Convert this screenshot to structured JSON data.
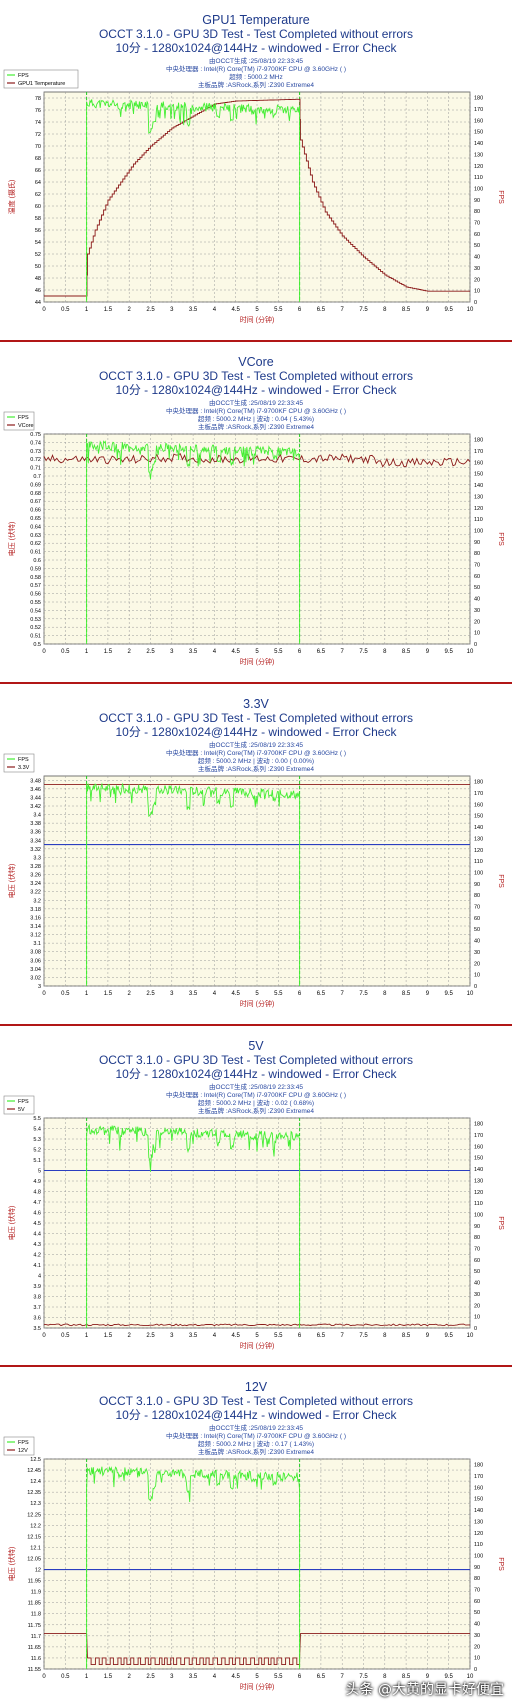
{
  "watermark": "头条 @大黄的显卡好便宜",
  "common": {
    "subtitle1": "OCCT 3.1.0 - GPU 3D Test - Test Completed without errors",
    "subtitle2": "10分 - 1280x1024@144Hz - windowed - Error Check",
    "info_generated": "由OCCT生成 :25/08/19 22:33:45",
    "info_cpu": "中央处理器 : Intel(R) Core(TM) i7-9700KF CPU @ 3.60GHz ( )",
    "info_board": "主板品牌 :ASRock,系列 :Z390 Extreme4",
    "xlabel": "时间 (分钟)",
    "y2label": "FPS"
  },
  "colors": {
    "fps": "#44ee33",
    "sensor": "#8b1a1a",
    "marker": "#22cc22",
    "plot_bg": "#fbf9e6",
    "grid": "#9a9a9a",
    "title": "#1e3a8a",
    "info": "#2747a0",
    "axis_label": "#b42020",
    "threshold": "#2a3ec0"
  },
  "chart_data": [
    {
      "type": "line",
      "title": "GPU1 Temperature",
      "info_clock": "超频 : 5000.2 MHz",
      "legend": [
        "FPS",
        "GPU1 Temperature"
      ],
      "ylabel": "温度 (摄氏)",
      "ylim": [
        44,
        79
      ],
      "y_ticks": [
        44,
        46,
        48,
        50,
        52,
        54,
        56,
        58,
        60,
        62,
        64,
        66,
        68,
        70,
        72,
        74,
        76,
        78
      ],
      "sensor_points": [
        [
          0,
          45
        ],
        [
          1,
          45
        ],
        [
          1.02,
          52
        ],
        [
          1.2,
          56
        ],
        [
          1.5,
          61
        ],
        [
          1.8,
          64
        ],
        [
          2.1,
          67
        ],
        [
          2.5,
          70
        ],
        [
          3,
          73
        ],
        [
          3.5,
          75
        ],
        [
          4,
          77
        ],
        [
          4.5,
          77.5
        ],
        [
          5,
          77.6
        ],
        [
          5.5,
          77.7
        ],
        [
          6,
          77.8
        ],
        [
          6.02,
          71
        ],
        [
          6.3,
          64
        ],
        [
          6.6,
          59
        ],
        [
          7,
          55
        ],
        [
          7.5,
          51.5
        ],
        [
          8,
          48.5
        ],
        [
          8.5,
          46.5
        ],
        [
          9,
          45.8
        ],
        [
          10,
          45.8
        ]
      ],
      "threshold": null
    },
    {
      "type": "line",
      "title": "VCore",
      "info_clock": "超频 : 5000.2 MHz | 波动 : 0.04 ( 5.43%)",
      "legend": [
        "FPS",
        "VCore"
      ],
      "ylabel": "电压 (伏特)",
      "ylim": [
        0.5,
        0.75
      ],
      "y_ticks": [
        0.5,
        0.51,
        0.52,
        0.53,
        0.54,
        0.55,
        0.56,
        0.57,
        0.58,
        0.59,
        0.6,
        0.61,
        0.62,
        0.63,
        0.64,
        0.65,
        0.66,
        0.67,
        0.68,
        0.69,
        0.7,
        0.71,
        0.72,
        0.73,
        0.74,
        0.75
      ],
      "sensor_points": [
        [
          0,
          0.72
        ],
        [
          1,
          0.72
        ],
        [
          2,
          0.719
        ],
        [
          3,
          0.722
        ],
        [
          4,
          0.72
        ],
        [
          5,
          0.721
        ],
        [
          6,
          0.72
        ],
        [
          7,
          0.721
        ],
        [
          7.7,
          0.72
        ],
        [
          7.8,
          0.716
        ],
        [
          8.5,
          0.716
        ],
        [
          9,
          0.716
        ],
        [
          10,
          0.717
        ]
      ],
      "sensor_noise": 0.005,
      "threshold": null
    },
    {
      "type": "line",
      "title": "3.3V",
      "info_clock": "超频 : 5000.2 MHz | 波动 : 0.00 ( 0.00%)",
      "legend": [
        "FPS",
        "3.3V"
      ],
      "ylabel": "电压 (伏特)",
      "ylim": [
        3.0,
        3.49
      ],
      "y_ticks": [
        3,
        3.02,
        3.04,
        3.06,
        3.08,
        3.1,
        3.12,
        3.14,
        3.16,
        3.18,
        3.2,
        3.22,
        3.24,
        3.26,
        3.28,
        3.3,
        3.32,
        3.34,
        3.36,
        3.38,
        3.4,
        3.42,
        3.44,
        3.46,
        3.48
      ],
      "sensor_points": [
        [
          0,
          3.47
        ],
        [
          10,
          3.47
        ]
      ],
      "threshold": 3.33
    },
    {
      "type": "line",
      "title": "5V",
      "info_clock": "超频 : 5000.2 MHz | 波动 : 0.02 ( 0.68%)",
      "legend": [
        "FPS",
        "5V"
      ],
      "ylabel": "电压 (伏特)",
      "ylim": [
        3.5,
        5.5
      ],
      "y_ticks": [
        3.5,
        3.6,
        3.7,
        3.8,
        3.9,
        4,
        4.1,
        4.2,
        4.3,
        4.4,
        4.5,
        4.6,
        4.7,
        4.8,
        4.9,
        5,
        5.1,
        5.2,
        5.3,
        5.4,
        5.5
      ],
      "sensor_points": [
        [
          0,
          3.53
        ],
        [
          10,
          3.53
        ]
      ],
      "sensor_noise": 0.008,
      "threshold": 5.0
    },
    {
      "type": "line",
      "title": "12V",
      "info_clock": "超频 : 5000.2 MHz | 波动 : 0.17 ( 1.43%)",
      "legend": [
        "FPS",
        "12V"
      ],
      "ylabel": "电压 (伏特)",
      "ylim": [
        11.55,
        12.5
      ],
      "y_ticks": [
        11.55,
        11.6,
        11.65,
        11.7,
        11.75,
        11.8,
        11.85,
        11.9,
        11.95,
        12,
        12.05,
        12.1,
        12.15,
        12.2,
        12.25,
        12.3,
        12.35,
        12.4,
        12.45,
        12.5
      ],
      "sensor_points": [
        [
          0,
          11.71
        ],
        [
          1,
          11.71
        ],
        [
          1.02,
          11.59
        ],
        [
          6,
          11.59
        ],
        [
          6.02,
          11.71
        ],
        [
          10,
          11.71
        ]
      ],
      "sensor_square": [
        1.02,
        6.0,
        11.57,
        11.6
      ],
      "threshold": 12.0
    }
  ],
  "shared_axes": {
    "x_ticks": [
      0,
      0.5,
      1,
      1.5,
      2,
      2.5,
      3,
      3.5,
      4,
      4.5,
      5,
      5.5,
      6,
      6.5,
      7,
      7.5,
      8,
      8.5,
      9,
      9.5,
      10
    ],
    "xlim": [
      0,
      10
    ],
    "y2lim": [
      0,
      185
    ],
    "y2_ticks": [
      0,
      10,
      20,
      30,
      40,
      50,
      60,
      70,
      80,
      90,
      100,
      110,
      120,
      130,
      140,
      150,
      160,
      170,
      180
    ],
    "markers_x": [
      1,
      6
    ],
    "fps_range_x": [
      1,
      6
    ],
    "fps_base": 175,
    "fps_dips": [
      [
        2.5,
        148
      ],
      [
        2.55,
        150
      ],
      [
        2.6,
        158
      ],
      [
        3.4,
        155
      ],
      [
        4.1,
        160
      ],
      [
        4.4,
        157
      ],
      [
        5.4,
        162
      ],
      [
        1.8,
        168
      ],
      [
        4.9,
        165
      ]
    ]
  }
}
